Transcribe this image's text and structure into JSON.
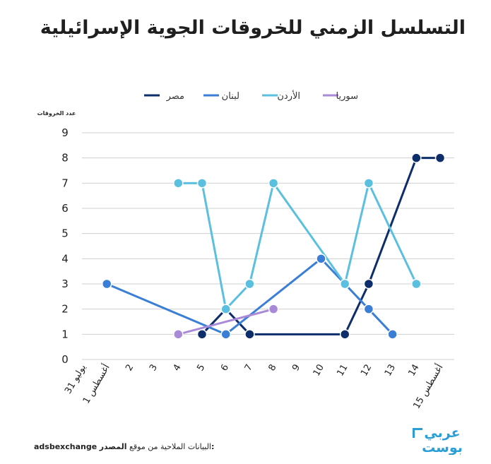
{
  "title": "التسلسل الزمني للخروقات الجوية الإسرائيلية",
  "source": {
    "label": "المصدر:",
    "text": "البيانات الملاحية من موقع",
    "site": "adsbexchange"
  },
  "logo_text": [
    "عربي",
    "بوست"
  ],
  "colors": {
    "egypt": "#0d2d6b",
    "lebanon": "#3a7fd5",
    "jordan": "#5bc0e0",
    "syria": "#a98ad8",
    "grid": "#cfcfcf",
    "logo": "#2a9fd6"
  },
  "chart_data": {
    "type": "line",
    "ylabel": "عدد الخروقات",
    "ylim": [
      0,
      9
    ],
    "yticks": [
      0,
      1,
      2,
      3,
      4,
      5,
      6,
      7,
      8,
      9
    ],
    "grid": true,
    "legend_position": "top",
    "categories": [
      "31 يوليو",
      "1 أغسطس",
      "2",
      "3",
      "4",
      "5",
      "6",
      "7",
      "8",
      "9",
      "10",
      "11",
      "12",
      "13",
      "14",
      "15 أغسطس"
    ],
    "series": [
      {
        "name": "مصر",
        "color": "#0d2d6b",
        "values": [
          null,
          null,
          null,
          null,
          null,
          1,
          2,
          1,
          null,
          null,
          null,
          1,
          3,
          null,
          8,
          8
        ]
      },
      {
        "name": "لبنان",
        "color": "#3a7fd5",
        "values": [
          null,
          3,
          null,
          null,
          null,
          null,
          1,
          null,
          null,
          null,
          4,
          null,
          2,
          1,
          null,
          null
        ]
      },
      {
        "name": "الأردن",
        "color": "#5bc0e0",
        "values": [
          null,
          null,
          null,
          null,
          7,
          7,
          2,
          3,
          7,
          null,
          null,
          3,
          7,
          null,
          3,
          null
        ]
      },
      {
        "name": "سوريا",
        "color": "#a98ad8",
        "values": [
          null,
          null,
          null,
          null,
          1,
          null,
          null,
          null,
          2,
          null,
          null,
          null,
          null,
          null,
          null,
          null
        ]
      }
    ]
  }
}
